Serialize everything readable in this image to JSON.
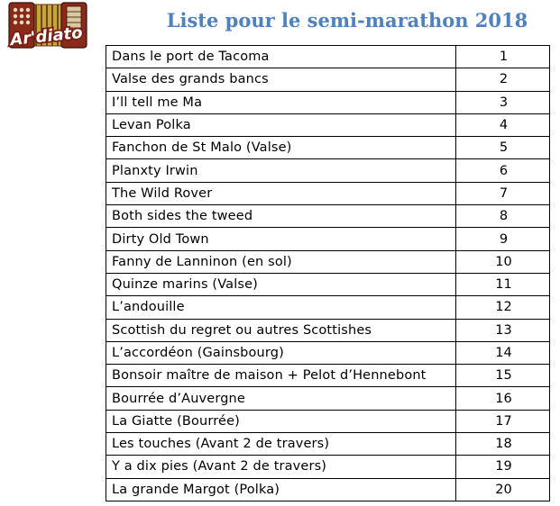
{
  "logo": {
    "text": "Ar'diato",
    "icon": "accordion-icon"
  },
  "header": {
    "title": "Liste pour le semi-marathon 2018"
  },
  "colors": {
    "title": "#4f81bd",
    "text": "#000000",
    "border": "#000000",
    "logo_text": "#ffffff",
    "logo_outline": "#7a1c10",
    "accordion_body": "#8a2a1a",
    "accordion_keys": "#d9c9a0",
    "accordion_bellows": "#c8a43a"
  },
  "list": {
    "rows": [
      {
        "name": "Dans le port de Tacoma",
        "number": "1"
      },
      {
        "name": "Valse des grands bancs",
        "number": "2"
      },
      {
        "name": "I’ll tell me Ma",
        "number": "3"
      },
      {
        "name": "Levan Polka",
        "number": "4"
      },
      {
        "name": "Fanchon de St Malo (Valse)",
        "number": "5"
      },
      {
        "name": "Planxty Irwin",
        "number": "6"
      },
      {
        "name": "The Wild Rover",
        "number": "7"
      },
      {
        "name": "Both sides the tweed",
        "number": "8"
      },
      {
        "name": "Dirty Old Town",
        "number": "9"
      },
      {
        "name": "Fanny de Lanninon (en sol)",
        "number": "10"
      },
      {
        "name": "Quinze marins (Valse)",
        "number": "11"
      },
      {
        "name": "L’andouille",
        "number": "12"
      },
      {
        "name": "Scottish du regret ou autres Scottishes",
        "number": "13"
      },
      {
        "name": "L’accordéon (Gainsbourg)",
        "number": "14"
      },
      {
        "name": "Bonsoir maître de maison + Pelot d’Hennebont",
        "number": "15"
      },
      {
        "name": "Bourrée d’Auvergne",
        "number": "16"
      },
      {
        "name": "La Giatte (Bourrée)",
        "number": "17"
      },
      {
        "name": "Les touches (Avant 2 de travers)",
        "number": "18"
      },
      {
        "name": "Y a dix pies (Avant 2 de travers)",
        "number": "19"
      },
      {
        "name": "La grande Margot (Polka)",
        "number": "20"
      }
    ]
  }
}
